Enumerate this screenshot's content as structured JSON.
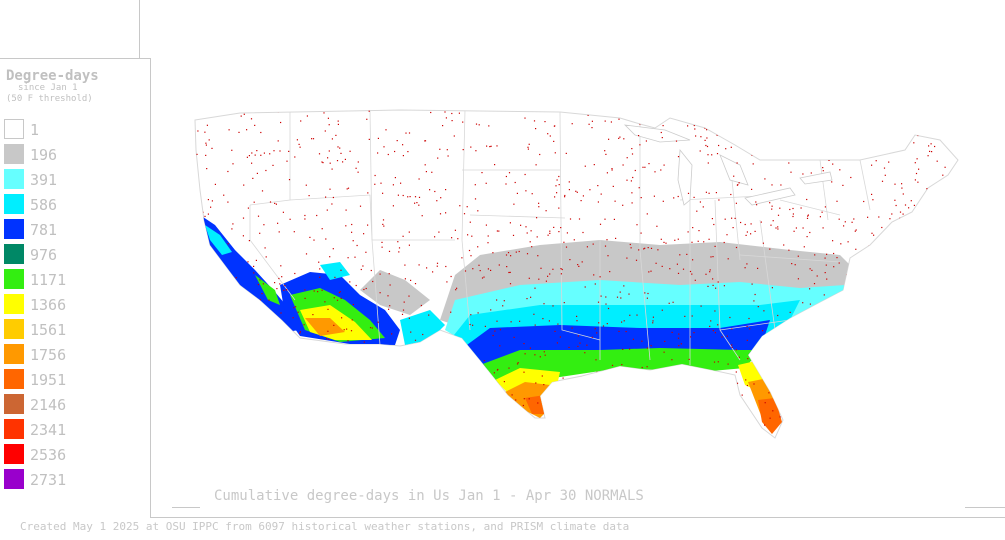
{
  "legend": {
    "title": "Degree-days",
    "subtitle_line1": "since Jan 1",
    "subtitle_line2": "(50 F threshold)",
    "items": [
      {
        "label": "1",
        "color": "#ffffff"
      },
      {
        "label": "196",
        "color": "#c8c8c8"
      },
      {
        "label": "391",
        "color": "#66ffff"
      },
      {
        "label": "586",
        "color": "#00eeff"
      },
      {
        "label": "781",
        "color": "#0033ff"
      },
      {
        "label": "976",
        "color": "#008866"
      },
      {
        "label": "1171",
        "color": "#33ee11"
      },
      {
        "label": "1366",
        "color": "#ffff00"
      },
      {
        "label": "1561",
        "color": "#ffcc00"
      },
      {
        "label": "1756",
        "color": "#ff9900"
      },
      {
        "label": "1951",
        "color": "#ff6600"
      },
      {
        "label": "2146",
        "color": "#cc6633"
      },
      {
        "label": "2341",
        "color": "#ff3300"
      },
      {
        "label": "2536",
        "color": "#ff0000"
      },
      {
        "label": "2731",
        "color": "#9900cc"
      }
    ]
  },
  "map": {
    "caption": "Cumulative degree-days in Us  Jan 1 - Apr 30 NORMALS",
    "station_dot_color": "#cc0000",
    "boundary_color": "#d0d0d0"
  },
  "footer": "Created May 1 2025 at OSU IPPC from 6097 historical weather stations, and PRISM climate data"
}
